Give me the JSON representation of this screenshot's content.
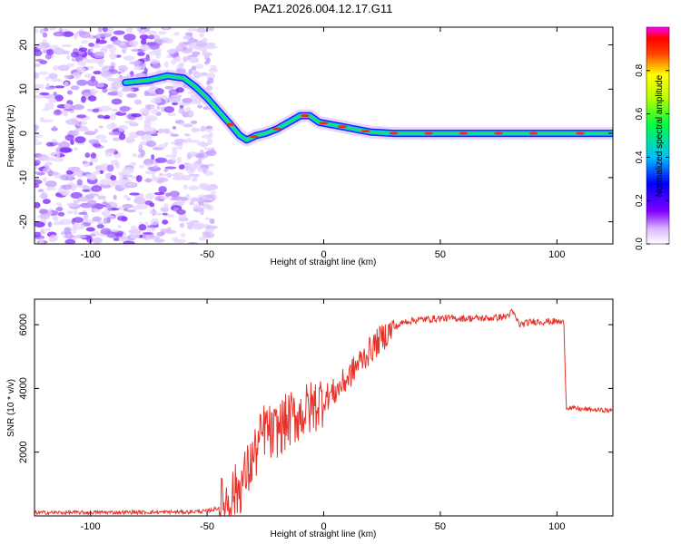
{
  "title": "PAZ1.2026.004.12.17.G11",
  "colors": {
    "snr_line": "#e8322a",
    "axis": "#000000"
  },
  "chart_data": [
    {
      "type": "heatmap",
      "name": "spectrogram",
      "xlabel": "Height of straight line (km)",
      "ylabel": "Frequency (Hz)",
      "xlim": [
        -124,
        124
      ],
      "ylim": [
        -25,
        24
      ],
      "xticks": [
        -100,
        -50,
        0,
        50,
        100
      ],
      "yticks": [
        -20,
        -10,
        0,
        10,
        20
      ],
      "xtick_labels": [
        "-100",
        "-50",
        "0",
        "50",
        "100"
      ],
      "ytick_labels": [
        "-20",
        "-10",
        "0",
        "10",
        "20"
      ],
      "noise_region_x": [
        -124,
        -51
      ],
      "ridge": {
        "x": [
          -85,
          -75,
          -67,
          -60,
          -55,
          -50,
          -45,
          -40,
          -36,
          -33,
          -29,
          -25,
          -20,
          -15,
          -10,
          -6,
          -2,
          3,
          8,
          15,
          20,
          30,
          50,
          80,
          100,
          124
        ],
        "freq": [
          11.5,
          12,
          13,
          12.5,
          10.5,
          8,
          5,
          2,
          -0.5,
          -1.5,
          -0.5,
          0,
          1,
          2.5,
          4,
          4,
          2.5,
          2,
          1.5,
          0.8,
          0.3,
          0,
          0,
          0,
          0,
          0
        ]
      }
    },
    {
      "type": "colorbar",
      "label": "Normalized spectral amplitude",
      "range": [
        0,
        1
      ],
      "ticks": [
        0,
        0.2,
        0.4,
        0.6,
        0.8
      ],
      "tick_labels": [
        "0.0",
        "0.2",
        "0.4",
        "0.6",
        "0.8"
      ]
    },
    {
      "type": "line",
      "name": "snr",
      "xlabel": "Height of straight line (km)",
      "ylabel": "SNR (10 * v/v)",
      "xlim": [
        -124,
        124
      ],
      "ylim": [
        0,
        6800
      ],
      "xticks": [
        -100,
        -50,
        0,
        50,
        100
      ],
      "yticks": [
        2000,
        4000,
        6000
      ],
      "xtick_labels": [
        "-100",
        "-50",
        "0",
        "50",
        "100"
      ],
      "ytick_labels": [
        "2000",
        "4000",
        "6000"
      ],
      "x": [
        -124,
        -60,
        -50,
        -45,
        -40,
        -36,
        -32,
        -28,
        -25,
        -22,
        -20,
        -15,
        -10,
        -5,
        0,
        5,
        10,
        15,
        20,
        25,
        30,
        35,
        40,
        50,
        60,
        70,
        78,
        81,
        84,
        90,
        100,
        103,
        104,
        110,
        124
      ],
      "y": [
        100,
        120,
        150,
        250,
        600,
        900,
        1500,
        2200,
        2800,
        2500,
        2700,
        3000,
        3200,
        3400,
        3700,
        3900,
        4300,
        4800,
        5200,
        5600,
        5900,
        6100,
        6150,
        6200,
        6200,
        6200,
        6250,
        6400,
        6000,
        6100,
        6100,
        6050,
        3400,
        3350,
        3300
      ]
    }
  ]
}
